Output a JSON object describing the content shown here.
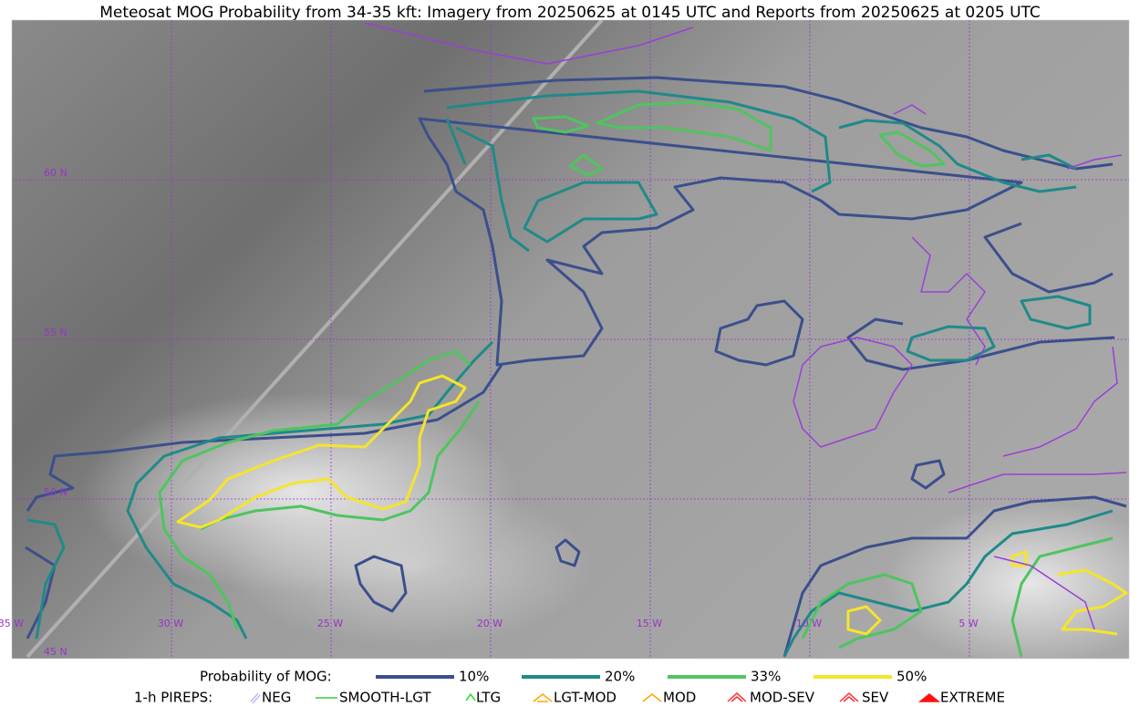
{
  "header": {
    "title": "Meteosat MOG Probability from 34-35 kft: Imagery from 20250625 at 0145 UTC and Reports from 20250625 at 0205 UTC"
  },
  "map": {
    "lat_labels": [
      "60 N",
      "55 N",
      "50 N",
      "45 N"
    ],
    "lon_labels": [
      "35 W",
      "30 W",
      "25 W",
      "20 W",
      "15 W",
      "10 W",
      "5 W"
    ],
    "grid_color": "#9933cc"
  },
  "legend": {
    "probability": {
      "title": "Probability of MOG:",
      "items": [
        {
          "label": "10%",
          "color": "#3b4f8c"
        },
        {
          "label": "20%",
          "color": "#1f8a89"
        },
        {
          "label": "33%",
          "color": "#4fc45f"
        },
        {
          "label": "50%",
          "color": "#f5e52a"
        }
      ]
    },
    "pireps": {
      "title": "1-h PIREPS:",
      "items": [
        {
          "label": "NEG",
          "color": "#b8b8f0"
        },
        {
          "label": "SMOOTH-LGT",
          "color": "#32cd32"
        },
        {
          "label": "LTG",
          "color": "#22dd22"
        },
        {
          "label": "LGT-MOD",
          "color": "#ffa500"
        },
        {
          "label": "MOD",
          "color": "#ffa500"
        },
        {
          "label": "MOD-SEV",
          "color": "#ff3030"
        },
        {
          "label": "SEV",
          "color": "#ff3030"
        },
        {
          "label": "EXTREME",
          "color": "#ff1010"
        }
      ]
    }
  }
}
